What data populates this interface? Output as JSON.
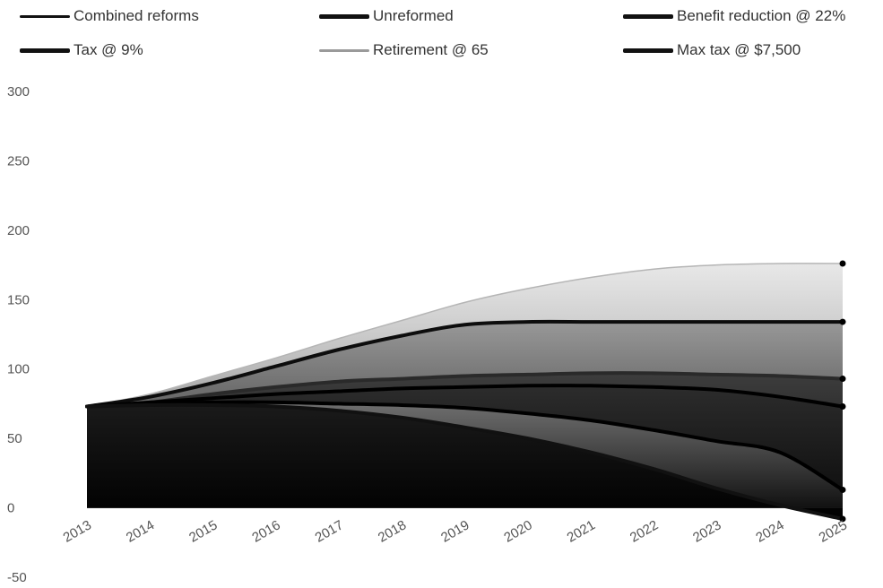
{
  "chart_data": {
    "type": "area",
    "title": "",
    "xlabel": "",
    "ylabel": "",
    "x": [
      "2013",
      "2014",
      "2015",
      "2016",
      "2017",
      "2018",
      "2019",
      "2020",
      "2021",
      "2022",
      "2023",
      "2024",
      "2025"
    ],
    "ylim": [
      -50,
      300
    ],
    "yticks": [
      300,
      250,
      200,
      150,
      100,
      50,
      0,
      -50
    ],
    "legend_position": "top",
    "series": [
      {
        "name": "Combined reforms",
        "color": "#2a2a2a",
        "values": [
          73,
          76,
          82,
          87,
          91,
          93,
          95,
          96,
          97,
          97,
          96,
          95,
          93
        ]
      },
      {
        "name": "Unreformed",
        "color": "#111111",
        "values": [
          73,
          74,
          74,
          73,
          70,
          65,
          58,
          50,
          40,
          28,
          14,
          2,
          -8
        ]
      },
      {
        "name": "Benefit reduction @ 22%",
        "color": "#0d0d0d",
        "values": [
          73,
          80,
          90,
          102,
          114,
          124,
          132,
          134,
          134,
          134,
          134,
          134,
          134
        ]
      },
      {
        "name": "Tax @ 9%",
        "color": "#000000",
        "values": [
          73,
          76,
          79,
          82,
          84,
          86,
          87,
          88,
          88,
          87,
          85,
          80,
          73
        ]
      },
      {
        "name": "Retirement @ 65",
        "color": "#b5b5b5",
        "values": [
          73,
          82,
          95,
          108,
          122,
          135,
          148,
          158,
          166,
          172,
          175,
          176,
          176
        ]
      },
      {
        "name": "Max tax @ $7,500",
        "color": "#000000",
        "values": [
          73,
          75,
          76,
          76,
          75,
          74,
          72,
          68,
          63,
          56,
          48,
          40,
          13
        ]
      }
    ]
  },
  "legend": [
    {
      "label": "Combined reforms",
      "style": "dark"
    },
    {
      "label": "Unreformed",
      "style": "dark"
    },
    {
      "label": "Benefit reduction @ 22%",
      "style": "dark"
    },
    {
      "label": "Tax @ 9%",
      "style": "dark"
    },
    {
      "label": "Retirement @ 65",
      "style": "light"
    },
    {
      "label": "Max tax @ $7,500",
      "style": "dark"
    }
  ]
}
